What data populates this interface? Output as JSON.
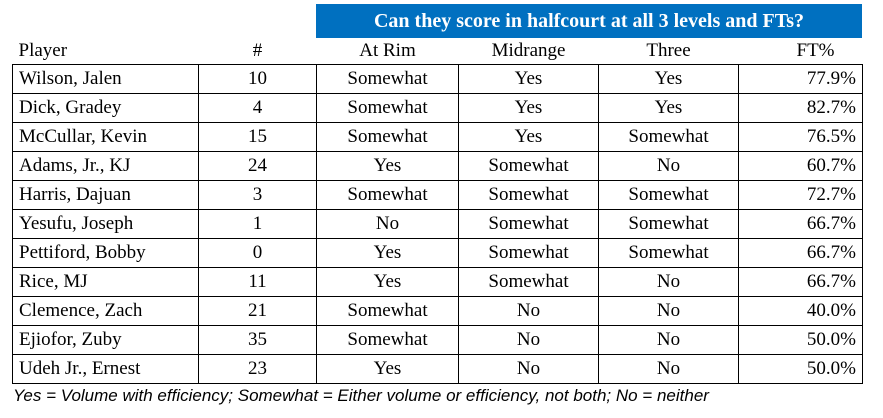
{
  "banner": {
    "title": "Can they score in halfcourt at all 3 levels and FTs?",
    "color": "#0070c0"
  },
  "columns": {
    "player": "Player",
    "number": "#",
    "at_rim": "At Rim",
    "midrange": "Midrange",
    "three": "Three",
    "ft": "FT%"
  },
  "rows": [
    {
      "player": "Wilson, Jalen",
      "number": "10",
      "at_rim": "Somewhat",
      "midrange": "Yes",
      "three": "Yes",
      "ft": "77.9%"
    },
    {
      "player": "Dick, Gradey",
      "number": "4",
      "at_rim": "Somewhat",
      "midrange": "Yes",
      "three": "Yes",
      "ft": "82.7%"
    },
    {
      "player": "McCullar, Kevin",
      "number": "15",
      "at_rim": "Somewhat",
      "midrange": "Yes",
      "three": "Somewhat",
      "ft": "76.5%"
    },
    {
      "player": "Adams, Jr., KJ",
      "number": "24",
      "at_rim": "Yes",
      "midrange": "Somewhat",
      "three": "No",
      "ft": "60.7%"
    },
    {
      "player": "Harris, Dajuan",
      "number": "3",
      "at_rim": "Somewhat",
      "midrange": "Somewhat",
      "three": "Somewhat",
      "ft": "72.7%"
    },
    {
      "player": "Yesufu, Joseph",
      "number": "1",
      "at_rim": "No",
      "midrange": "Somewhat",
      "three": "Somewhat",
      "ft": "66.7%"
    },
    {
      "player": "Pettiford, Bobby",
      "number": "0",
      "at_rim": "Yes",
      "midrange": "Somewhat",
      "three": "Somewhat",
      "ft": "66.7%"
    },
    {
      "player": "Rice, MJ",
      "number": "11",
      "at_rim": "Yes",
      "midrange": "Somewhat",
      "three": "No",
      "ft": "66.7%"
    },
    {
      "player": "Clemence, Zach",
      "number": "21",
      "at_rim": "Somewhat",
      "midrange": "No",
      "three": "No",
      "ft": "40.0%"
    },
    {
      "player": "Ejiofor, Zuby",
      "number": "35",
      "at_rim": "Somewhat",
      "midrange": "No",
      "three": "No",
      "ft": "50.0%"
    },
    {
      "player": "Udeh Jr., Ernest",
      "number": "23",
      "at_rim": "Yes",
      "midrange": "No",
      "three": "No",
      "ft": "50.0%"
    }
  ],
  "footnote": "Yes = Volume with efficiency; Somewhat = Either volume or efficiency, not both; No = neither"
}
